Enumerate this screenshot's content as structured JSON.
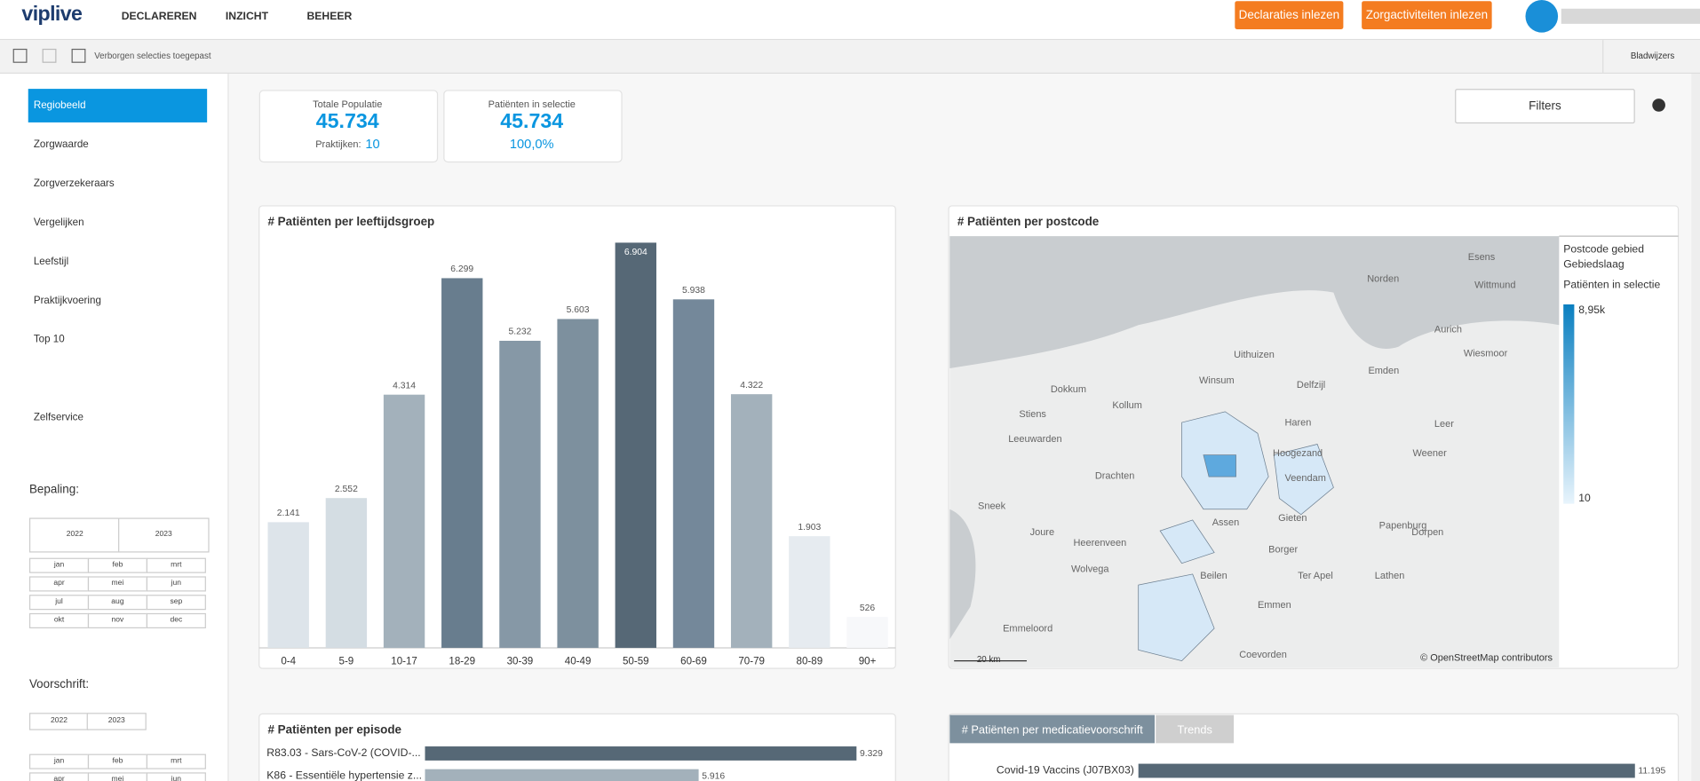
{
  "header": {
    "logo": "viplive",
    "nav": [
      "DECLAREREN",
      "INZICHT",
      "BEHEER"
    ],
    "buttons": [
      "Declaraties inlezen",
      "Zorgactiviteiten inlezen"
    ]
  },
  "toolbar": {
    "status": "Verborgen selecties toegepast",
    "bookmarks": "Bladwijzers"
  },
  "sidebar": {
    "menu": [
      "Regiobeeld",
      "Zorgwaarde",
      "Zorgverzekeraars",
      "Vergelijken",
      "Leefstijl",
      "Praktijkvoering",
      "Top 10",
      "Zelfservice"
    ],
    "bepaling": {
      "title": "Bepaling:",
      "years": [
        "2022",
        "2023"
      ],
      "months": [
        "jan",
        "feb",
        "mrt",
        "apr",
        "mei",
        "jun",
        "jul",
        "aug",
        "sep",
        "okt",
        "nov",
        "dec"
      ]
    },
    "voorschrift": {
      "title": "Voorschrift:",
      "years": [
        "2022",
        "2023"
      ],
      "months": [
        "jan",
        "feb",
        "mrt",
        "apr",
        "mei",
        "jun"
      ]
    }
  },
  "kpis": [
    {
      "label": "Totale Populatie",
      "value": "45.734",
      "sub_label": "Praktijken:",
      "sub_value": "10"
    },
    {
      "label": "Patiënten in selectie",
      "value": "45.734",
      "sub_value": "100,0%"
    }
  ],
  "filters": "Filters",
  "map": {
    "title": "# Patiënten per postcode",
    "legend": [
      "Postcode gebied",
      "Gebiedslaag",
      "Patiënten in selectie"
    ],
    "legend_max": "8,95k",
    "legend_min": "10",
    "scale": "20 km",
    "attribution": "© OpenStreetMap contributors",
    "places": [
      "Esens",
      "Norden",
      "Wittmund",
      "Aurich",
      "Wiesmoor",
      "Emden",
      "Leer",
      "Uithuizen",
      "Delfzijl",
      "Winsum",
      "Dokkum",
      "Kollum",
      "Leeuwarden",
      "Drachten",
      "Veendam",
      "Assen",
      "Emmen",
      "Heerenveen",
      "Coevorden",
      "Emmeloord",
      "Hoogezand",
      "Gieten",
      "Borger",
      "Beilen",
      "Ter Apel",
      "Stiens",
      "Joure",
      "Wolvega",
      "Sneek",
      "Weener",
      "Dorpen",
      "Lathen",
      "Papenburg",
      "Haren"
    ]
  },
  "chart_data": [
    {
      "type": "bar",
      "title": "# Patiënten per leeftijdsgroep",
      "categories": [
        "0-4",
        "5-9",
        "10-17",
        "18-29",
        "30-39",
        "40-49",
        "50-59",
        "60-69",
        "70-79",
        "80-89",
        "90+"
      ],
      "values": [
        2141,
        2552,
        4314,
        6299,
        5232,
        5603,
        6904,
        5938,
        4322,
        1903,
        526
      ],
      "value_labels": [
        "2.141",
        "2.552",
        "4.314",
        "6.299",
        "5.232",
        "5.603",
        "6.904",
        "5.938",
        "4.322",
        "1.903",
        "526"
      ],
      "colors": [
        "#dde4ea",
        "#d4dde3",
        "#a3b1bb",
        "#687d8e",
        "#8698a6",
        "#7d909e",
        "#566876",
        "#74889a",
        "#a3b1bb",
        "#e6ebf0",
        "#f7f8fa"
      ]
    },
    {
      "type": "hbar",
      "title": "# Patiënten per episode",
      "categories": [
        "R83.03 - Sars-CoV-2 (COVID-...",
        "K86 - Essentiële hypertensie z..."
      ],
      "values": [
        9329,
        5916
      ],
      "value_labels": [
        "9.329",
        "5.916"
      ],
      "colors": [
        "#566876",
        "#a3b1bb"
      ]
    },
    {
      "type": "hbar",
      "title": "# Patiënten per medicatievoorschrift",
      "tabs": [
        "Trends"
      ],
      "categories": [
        "Covid-19 Vaccins (J07BX03)"
      ],
      "values": [
        11195
      ],
      "value_labels": [
        "11.195"
      ],
      "colors": [
        "#566876"
      ]
    }
  ]
}
